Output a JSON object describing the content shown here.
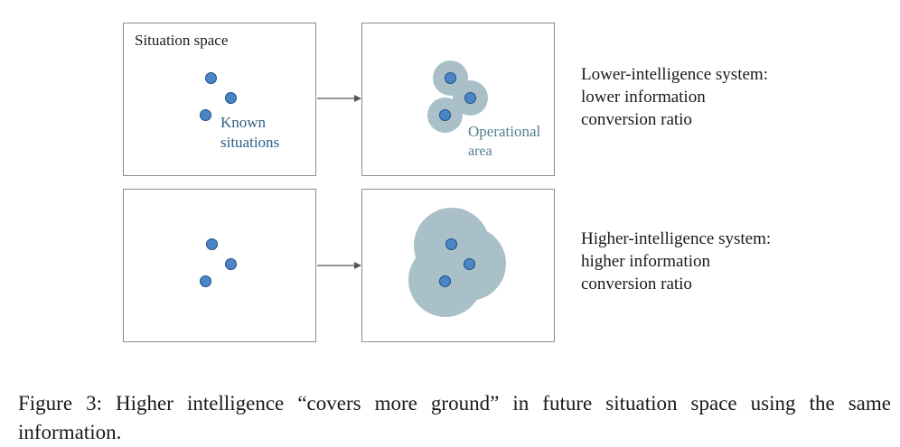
{
  "figure": {
    "panel_title": "Situation space",
    "known_label_line1": "Known",
    "known_label_line2": "situations",
    "operational_label_line1": "Operational",
    "operational_label_line2": "area",
    "lower_desc_line1": "Lower-intelligence system:",
    "lower_desc_line2": "lower information",
    "lower_desc_line3": "conversion ratio",
    "higher_desc_line1": "Higher-intelligence system:",
    "higher_desc_line2": "higher information",
    "higher_desc_line3": "conversion ratio",
    "colors": {
      "dot_fill": "#4a86c5",
      "dot_stroke": "#1f4e84",
      "operational_area": "#a9c0c8",
      "label_blue": "#2f5f86",
      "label_teal": "#4e7f90",
      "panel_border": "#8c8c8c"
    }
  },
  "caption": {
    "line1": "Figure 3: Higher intelligence “covers more ground” in future situation space using the same",
    "line2": "information."
  }
}
